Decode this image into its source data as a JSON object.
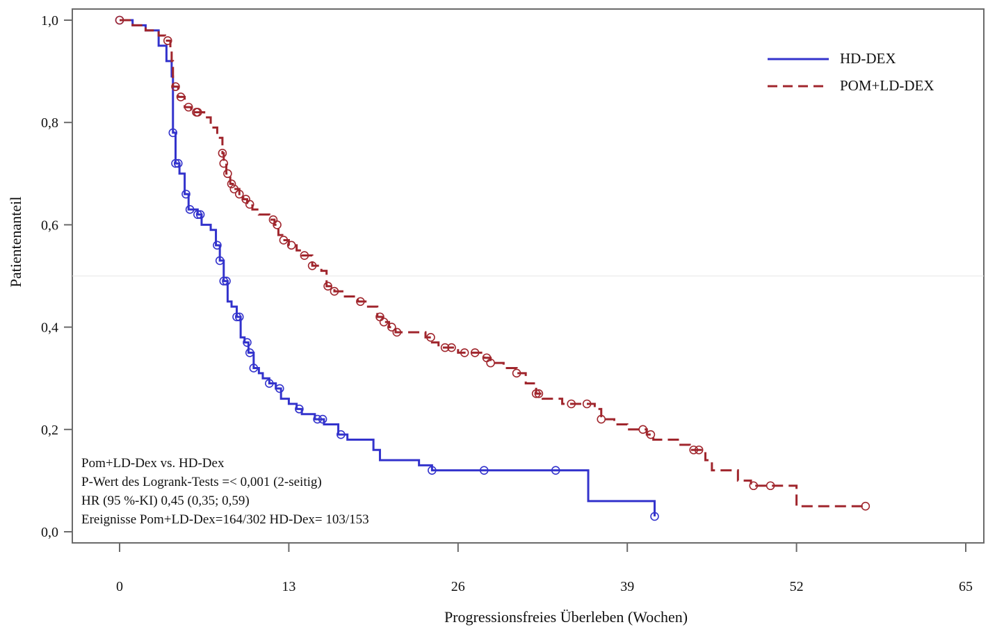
{
  "chart_data": {
    "type": "line",
    "xlabel": "Progressionsfreies Überleben (Wochen)",
    "ylabel": "Patientenanteil",
    "xlim": [
      0,
      65
    ],
    "ylim": [
      0,
      1
    ],
    "x_ticks": [
      "0",
      "13",
      "26",
      "39",
      "52",
      "65"
    ],
    "x_tick_values": [
      0,
      13,
      26,
      39,
      52,
      65
    ],
    "y_ticks": [
      "0,0",
      "0,2",
      "0,4",
      "0,6",
      "0,8",
      "1,0"
    ],
    "y_tick_values": [
      0,
      0.2,
      0.4,
      0.6,
      0.8,
      1.0
    ],
    "legend_position": "top-right",
    "series": [
      {
        "name": "HD-DEX",
        "color": "#3333cc",
        "style": "solid",
        "steps": [
          [
            0,
            1.0
          ],
          [
            1,
            0.99
          ],
          [
            2,
            0.98
          ],
          [
            3,
            0.95
          ],
          [
            3.6,
            0.92
          ],
          [
            4,
            0.89
          ],
          [
            4.1,
            0.78
          ],
          [
            4.3,
            0.72
          ],
          [
            4.6,
            0.7
          ],
          [
            5,
            0.66
          ],
          [
            5.3,
            0.63
          ],
          [
            6,
            0.62
          ],
          [
            6.3,
            0.6
          ],
          [
            7,
            0.59
          ],
          [
            7.4,
            0.56
          ],
          [
            7.7,
            0.53
          ],
          [
            8,
            0.49
          ],
          [
            8.3,
            0.45
          ],
          [
            8.6,
            0.44
          ],
          [
            9,
            0.42
          ],
          [
            9.3,
            0.38
          ],
          [
            9.6,
            0.37
          ],
          [
            9.9,
            0.35
          ],
          [
            10.3,
            0.32
          ],
          [
            10.7,
            0.31
          ],
          [
            11,
            0.3
          ],
          [
            11.5,
            0.29
          ],
          [
            12,
            0.28
          ],
          [
            12.4,
            0.26
          ],
          [
            13,
            0.25
          ],
          [
            13.6,
            0.24
          ],
          [
            14,
            0.23
          ],
          [
            15,
            0.22
          ],
          [
            15.7,
            0.21
          ],
          [
            16.8,
            0.19
          ],
          [
            17.5,
            0.18
          ],
          [
            19.5,
            0.16
          ],
          [
            20,
            0.14
          ],
          [
            23,
            0.13
          ],
          [
            24,
            0.12
          ],
          [
            35.9,
            0.12
          ],
          [
            36,
            0.06
          ],
          [
            41,
            0.06
          ],
          [
            41.1,
            0.03
          ]
        ],
        "censor_x": [
          0,
          4.1,
          4.3,
          4.5,
          5.1,
          5.4,
          6,
          6.2,
          7.5,
          7.7,
          8,
          8.2,
          9,
          9.2,
          9.8,
          10,
          10.3,
          11.5,
          12.3,
          13.8,
          15.2,
          15.6,
          17,
          24,
          28,
          33.5,
          41.1
        ]
      },
      {
        "name": "POM+LD-DEX",
        "color": "#a0262d",
        "style": "dashed",
        "steps": [
          [
            0,
            1.0
          ],
          [
            1,
            0.99
          ],
          [
            2,
            0.98
          ],
          [
            3,
            0.97
          ],
          [
            3.5,
            0.96
          ],
          [
            3.9,
            0.94
          ],
          [
            4,
            0.92
          ],
          [
            4.1,
            0.87
          ],
          [
            4.5,
            0.85
          ],
          [
            5,
            0.83
          ],
          [
            5.5,
            0.82
          ],
          [
            6.5,
            0.81
          ],
          [
            7,
            0.79
          ],
          [
            7.5,
            0.77
          ],
          [
            7.9,
            0.74
          ],
          [
            8,
            0.72
          ],
          [
            8.2,
            0.7
          ],
          [
            8.5,
            0.68
          ],
          [
            8.8,
            0.67
          ],
          [
            9.2,
            0.66
          ],
          [
            9.5,
            0.65
          ],
          [
            9.8,
            0.64
          ],
          [
            10.2,
            0.63
          ],
          [
            10.7,
            0.62
          ],
          [
            11.5,
            0.61
          ],
          [
            11.9,
            0.6
          ],
          [
            12.2,
            0.58
          ],
          [
            12.5,
            0.57
          ],
          [
            13,
            0.56
          ],
          [
            13.6,
            0.55
          ],
          [
            14,
            0.54
          ],
          [
            14.8,
            0.52
          ],
          [
            15.5,
            0.51
          ],
          [
            15.9,
            0.48
          ],
          [
            16.5,
            0.47
          ],
          [
            17.2,
            0.46
          ],
          [
            18.3,
            0.45
          ],
          [
            19,
            0.44
          ],
          [
            19.8,
            0.42
          ],
          [
            20.2,
            0.41
          ],
          [
            20.7,
            0.4
          ],
          [
            21.2,
            0.39
          ],
          [
            23.5,
            0.38
          ],
          [
            24,
            0.37
          ],
          [
            24.5,
            0.36
          ],
          [
            26,
            0.35
          ],
          [
            27.5,
            0.35
          ],
          [
            28,
            0.34
          ],
          [
            28.5,
            0.33
          ],
          [
            29.5,
            0.32
          ],
          [
            30.5,
            0.31
          ],
          [
            31.2,
            0.29
          ],
          [
            32,
            0.27
          ],
          [
            32.5,
            0.26
          ],
          [
            34,
            0.25
          ],
          [
            36.5,
            0.24
          ],
          [
            37,
            0.22
          ],
          [
            38,
            0.21
          ],
          [
            39,
            0.2
          ],
          [
            40.5,
            0.19
          ],
          [
            41,
            0.18
          ],
          [
            43,
            0.17
          ],
          [
            43.8,
            0.16
          ],
          [
            45,
            0.14
          ],
          [
            45.5,
            0.12
          ],
          [
            47.5,
            0.1
          ],
          [
            48.5,
            0.09
          ],
          [
            52,
            0.05
          ],
          [
            57.3,
            0.05
          ]
        ],
        "censor_x": [
          0,
          3.7,
          4.3,
          4.7,
          5.3,
          5.9,
          6,
          7.9,
          8,
          8.3,
          8.6,
          8.8,
          9.2,
          9.7,
          10,
          11.8,
          12.1,
          12.6,
          13.2,
          14.2,
          14.8,
          16,
          16.5,
          18.5,
          20,
          20.3,
          20.9,
          21.3,
          23.9,
          25,
          25.5,
          26.5,
          27.3,
          28.2,
          28.5,
          30.5,
          32,
          32.2,
          34.7,
          35.9,
          37,
          40.2,
          40.8,
          44.1,
          44.5,
          48.7,
          50,
          57.3
        ]
      }
    ],
    "annotations": [
      "Pom+LD-Dex vs. HD-Dex",
      "P-Wert des Logrank-Tests =< 0,001 (2-seitig)",
      "HR (95 %-KI) 0,45 (0,35; 0,59)",
      "Ereignisse Pom+LD-Dex=164/302 HD-Dex= 103/153"
    ]
  }
}
